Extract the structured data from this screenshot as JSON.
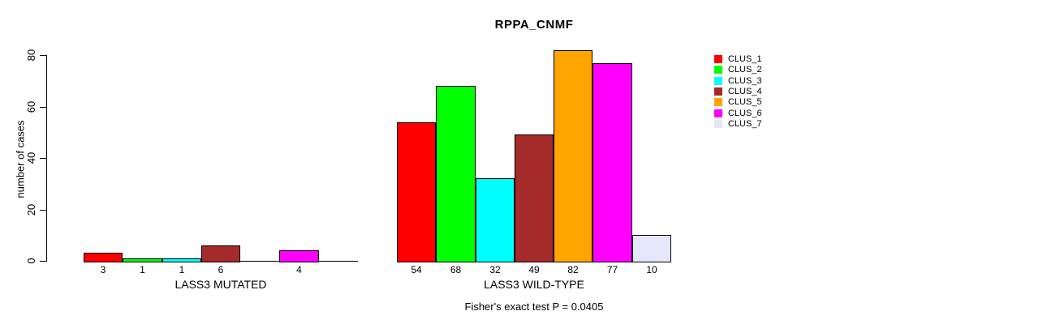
{
  "chart_data": {
    "type": "bar",
    "title": "RPPA_CNMF",
    "ylabel": "number of cases",
    "xlabel": "",
    "ylim": [
      0,
      80
    ],
    "yticks": [
      "0",
      "20",
      "40",
      "60",
      "80"
    ],
    "grid": false,
    "legend_position": "right",
    "clusters": [
      {
        "name": "CLUS_1",
        "color": "#FF0000"
      },
      {
        "name": "CLUS_2",
        "color": "#00FF00"
      },
      {
        "name": "CLUS_3",
        "color": "#00FFFF"
      },
      {
        "name": "CLUS_4",
        "color": "#A52A2A"
      },
      {
        "name": "CLUS_5",
        "color": "#FFA500"
      },
      {
        "name": "CLUS_6",
        "color": "#FF00FF"
      },
      {
        "name": "CLUS_7",
        "color": "#E6E6FA"
      }
    ],
    "groups": [
      {
        "label": "LASS3 MUTATED",
        "values": [
          3,
          1,
          1,
          6,
          0,
          4,
          0
        ],
        "bar_labels": [
          "3",
          "1",
          "1",
          "6",
          "",
          "4",
          ""
        ]
      },
      {
        "label": "LASS3 WILD-TYPE",
        "values": [
          54,
          68,
          32,
          49,
          82,
          77,
          10
        ],
        "bar_labels": [
          "54",
          "68",
          "32",
          "49",
          "82",
          "77",
          "10"
        ]
      }
    ],
    "annotation": "Fisher's exact test P = 0.0405"
  },
  "colors": {
    "axis": "#000000",
    "text": "#000000",
    "background": "#FFFFFF"
  }
}
